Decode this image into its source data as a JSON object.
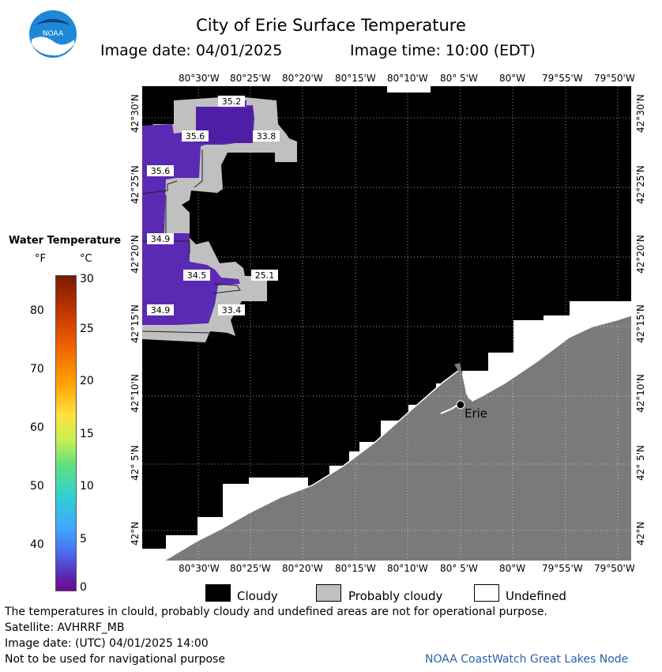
{
  "header": {
    "title": "City of Erie Surface Temperature",
    "image_date": "Image date: 04/01/2025",
    "image_time": "Image time: 10:00 (EDT)",
    "logo_text": "NOAA"
  },
  "axes": {
    "top_labels": [
      "80°30'W",
      "80°25'W",
      "80°20'W",
      "80°15'W",
      "80°10'W",
      "80° 5'W",
      "80°W",
      "79°55'W",
      "79°50'W"
    ],
    "bottom_labels": [
      "80°30'W",
      "80°25'W",
      "80°20'W",
      "80°15'W",
      "80°10'W",
      "80° 5'W",
      "80°W",
      "79°55'W",
      "79°50'W"
    ],
    "left_labels": [
      "42°30'N",
      "42°25'N",
      "42°20'N",
      "42°15'N",
      "42°10'N",
      "42° 5'N",
      "42°N"
    ],
    "right_labels": [
      "42°30'N",
      "42°25'N",
      "42°20'N",
      "42°15'N",
      "42°10'N",
      "42° 5'N",
      "42°N"
    ]
  },
  "colorbar": {
    "title": "Water Temperature",
    "unit_f": "°F",
    "unit_c": "°C",
    "f_ticks": [
      "80",
      "70",
      "60",
      "50",
      "40"
    ],
    "c_ticks": [
      "30",
      "25",
      "20",
      "15",
      "10",
      "5",
      "0"
    ]
  },
  "map": {
    "city_label": "Erie",
    "temperature_labels": [
      "35.2",
      "35.6",
      "33.8",
      "35.6",
      "34.9",
      "34.5",
      "25.1",
      "34.9",
      "33.4"
    ],
    "colors": {
      "cloudy": "#000000",
      "probably_cloudy": "#c0c0c0",
      "land": "#7a7a7a",
      "undefined": "#ffffff",
      "cold_water": "#5a2ab4"
    }
  },
  "legend": {
    "cloudy": "Cloudy",
    "probably_cloudy": "Probably cloudy",
    "undefined": "Undefined"
  },
  "footer": {
    "line1": "The temperatures in clould, probably cloudy and undefined areas are not for operational purpose.",
    "line2": "Satellite: AVHRRF_MB",
    "line3": "Image date: (UTC) 04/01/2025  14:00",
    "line4": "Not to be used for navigational purpose",
    "credit": "NOAA CoastWatch Great Lakes Node"
  }
}
